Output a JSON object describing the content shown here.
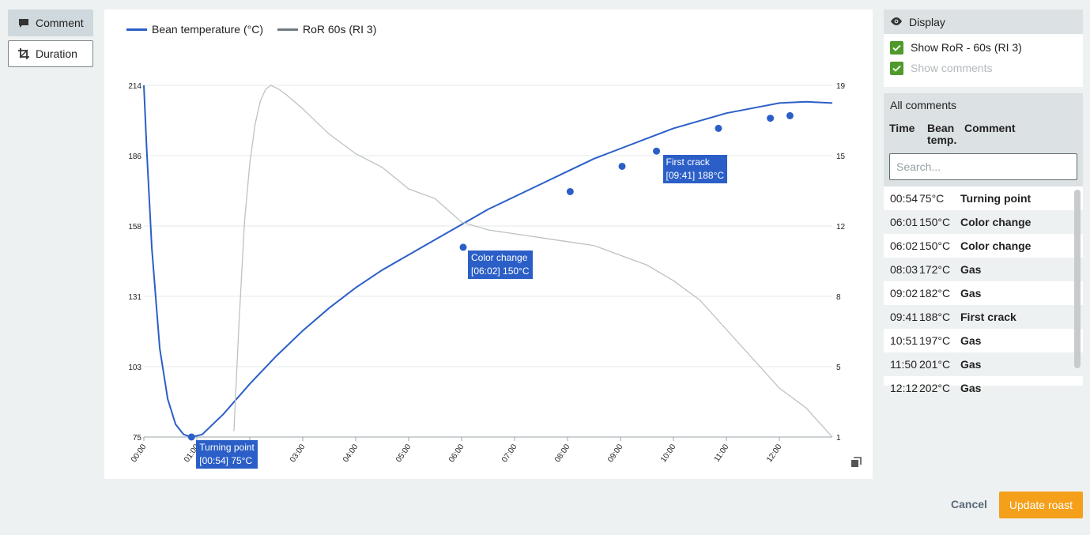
{
  "toolbar": {
    "comment_label": "Comment",
    "duration_label": "Duration"
  },
  "chart_data": {
    "type": "line",
    "series": [
      {
        "name": "Bean temperature (°C)",
        "color": "#2b5fc7",
        "axis": "left",
        "points": [
          [
            0,
            214
          ],
          [
            0.05,
            190
          ],
          [
            0.15,
            150
          ],
          [
            0.3,
            110
          ],
          [
            0.45,
            90
          ],
          [
            0.6,
            80
          ],
          [
            0.75,
            76
          ],
          [
            0.9,
            75
          ],
          [
            1.1,
            76
          ],
          [
            1.5,
            84
          ],
          [
            2,
            96
          ],
          [
            2.5,
            107
          ],
          [
            3,
            117
          ],
          [
            3.5,
            126
          ],
          [
            4,
            134
          ],
          [
            4.5,
            141
          ],
          [
            5,
            147
          ],
          [
            5.5,
            153
          ],
          [
            6,
            159
          ],
          [
            6.5,
            165
          ],
          [
            7,
            170
          ],
          [
            7.5,
            175
          ],
          [
            8,
            180
          ],
          [
            8.5,
            185
          ],
          [
            9,
            189
          ],
          [
            9.5,
            193
          ],
          [
            10,
            197
          ],
          [
            10.5,
            200
          ],
          [
            11,
            203
          ],
          [
            11.5,
            205
          ],
          [
            12,
            207
          ],
          [
            12.5,
            207.5
          ],
          [
            13,
            207
          ]
        ]
      },
      {
        "name": "RoR 60s (RI 3)",
        "color": "#bcc2c6",
        "axis": "right",
        "points": [
          [
            1.7,
            1.3
          ],
          [
            1.8,
            7
          ],
          [
            1.9,
            12
          ],
          [
            2.0,
            15
          ],
          [
            2.1,
            17
          ],
          [
            2.2,
            18.2
          ],
          [
            2.3,
            18.8
          ],
          [
            2.4,
            19
          ],
          [
            2.55,
            18.8
          ],
          [
            2.7,
            18.5
          ],
          [
            3,
            17.8
          ],
          [
            3.5,
            16.5
          ],
          [
            4,
            15.5
          ],
          [
            4.5,
            14.8
          ],
          [
            5,
            13.7
          ],
          [
            5.5,
            13.2
          ],
          [
            6,
            12
          ],
          [
            6.5,
            11.6
          ],
          [
            7,
            11.4
          ],
          [
            7.5,
            11.2
          ],
          [
            8,
            11
          ],
          [
            8.5,
            10.8
          ],
          [
            9,
            10.3
          ],
          [
            9.5,
            9.8
          ],
          [
            10,
            9
          ],
          [
            10.5,
            8
          ],
          [
            11,
            6.5
          ],
          [
            11.5,
            5
          ],
          [
            12,
            3.5
          ],
          [
            12.5,
            2.5
          ],
          [
            13,
            1
          ]
        ]
      }
    ],
    "markers": [
      {
        "t": 0.9,
        "temp": 75
      },
      {
        "t": 6.03,
        "temp": 150
      },
      {
        "t": 8.05,
        "temp": 172
      },
      {
        "t": 9.03,
        "temp": 182
      },
      {
        "t": 9.68,
        "temp": 188
      },
      {
        "t": 10.85,
        "temp": 197
      },
      {
        "t": 11.83,
        "temp": 201
      },
      {
        "t": 12.2,
        "temp": 202
      }
    ],
    "annotations": [
      {
        "line1": "Turning point",
        "line2": "[00:54] 75°C"
      },
      {
        "line1": "Color change",
        "line2": "[06:02] 150°C"
      },
      {
        "line1": "First crack",
        "line2": "[09:41] 188°C"
      }
    ],
    "x_ticks": [
      "00:00",
      "01:00",
      "02:00",
      "03:00",
      "04:00",
      "05:00",
      "06:00",
      "07:00",
      "08:00",
      "09:00",
      "10:00",
      "11:00",
      "12:00"
    ],
    "y_left_ticks": [
      75,
      103,
      131,
      158,
      186,
      214
    ],
    "y_right_ticks": [
      1,
      5,
      8,
      12,
      15,
      19
    ],
    "xlim": [
      0,
      13
    ],
    "ylim_left": [
      75,
      214
    ],
    "ylim_right": [
      1,
      19
    ],
    "grid": true,
    "legend_position": "top-left"
  },
  "display": {
    "title": "Display",
    "show_ror_label": "Show RoR - 60s (RI 3)",
    "show_comments_label": "Show comments"
  },
  "comments": {
    "title": "All comments",
    "col_time": "Time",
    "col_bean": "Bean",
    "col_bean2": "temp.",
    "col_comment": "Comment",
    "search_placeholder": "Search...",
    "rows": [
      {
        "time": "00:54",
        "temp": "75°C",
        "comment": "Turning point"
      },
      {
        "time": "06:01",
        "temp": "150°C",
        "comment": "Color change"
      },
      {
        "time": "06:02",
        "temp": "150°C",
        "comment": "Color change"
      },
      {
        "time": "08:03",
        "temp": "172°C",
        "comment": "Gas"
      },
      {
        "time": "09:02",
        "temp": "182°C",
        "comment": "Gas"
      },
      {
        "time": "09:41",
        "temp": "188°C",
        "comment": "First crack"
      },
      {
        "time": "10:51",
        "temp": "197°C",
        "comment": "Gas"
      },
      {
        "time": "11:50",
        "temp": "201°C",
        "comment": "Gas"
      },
      {
        "time": "12:12",
        "temp": "202°C",
        "comment": "Gas"
      }
    ]
  },
  "actions": {
    "cancel_label": "Cancel",
    "update_label": "Update roast"
  }
}
